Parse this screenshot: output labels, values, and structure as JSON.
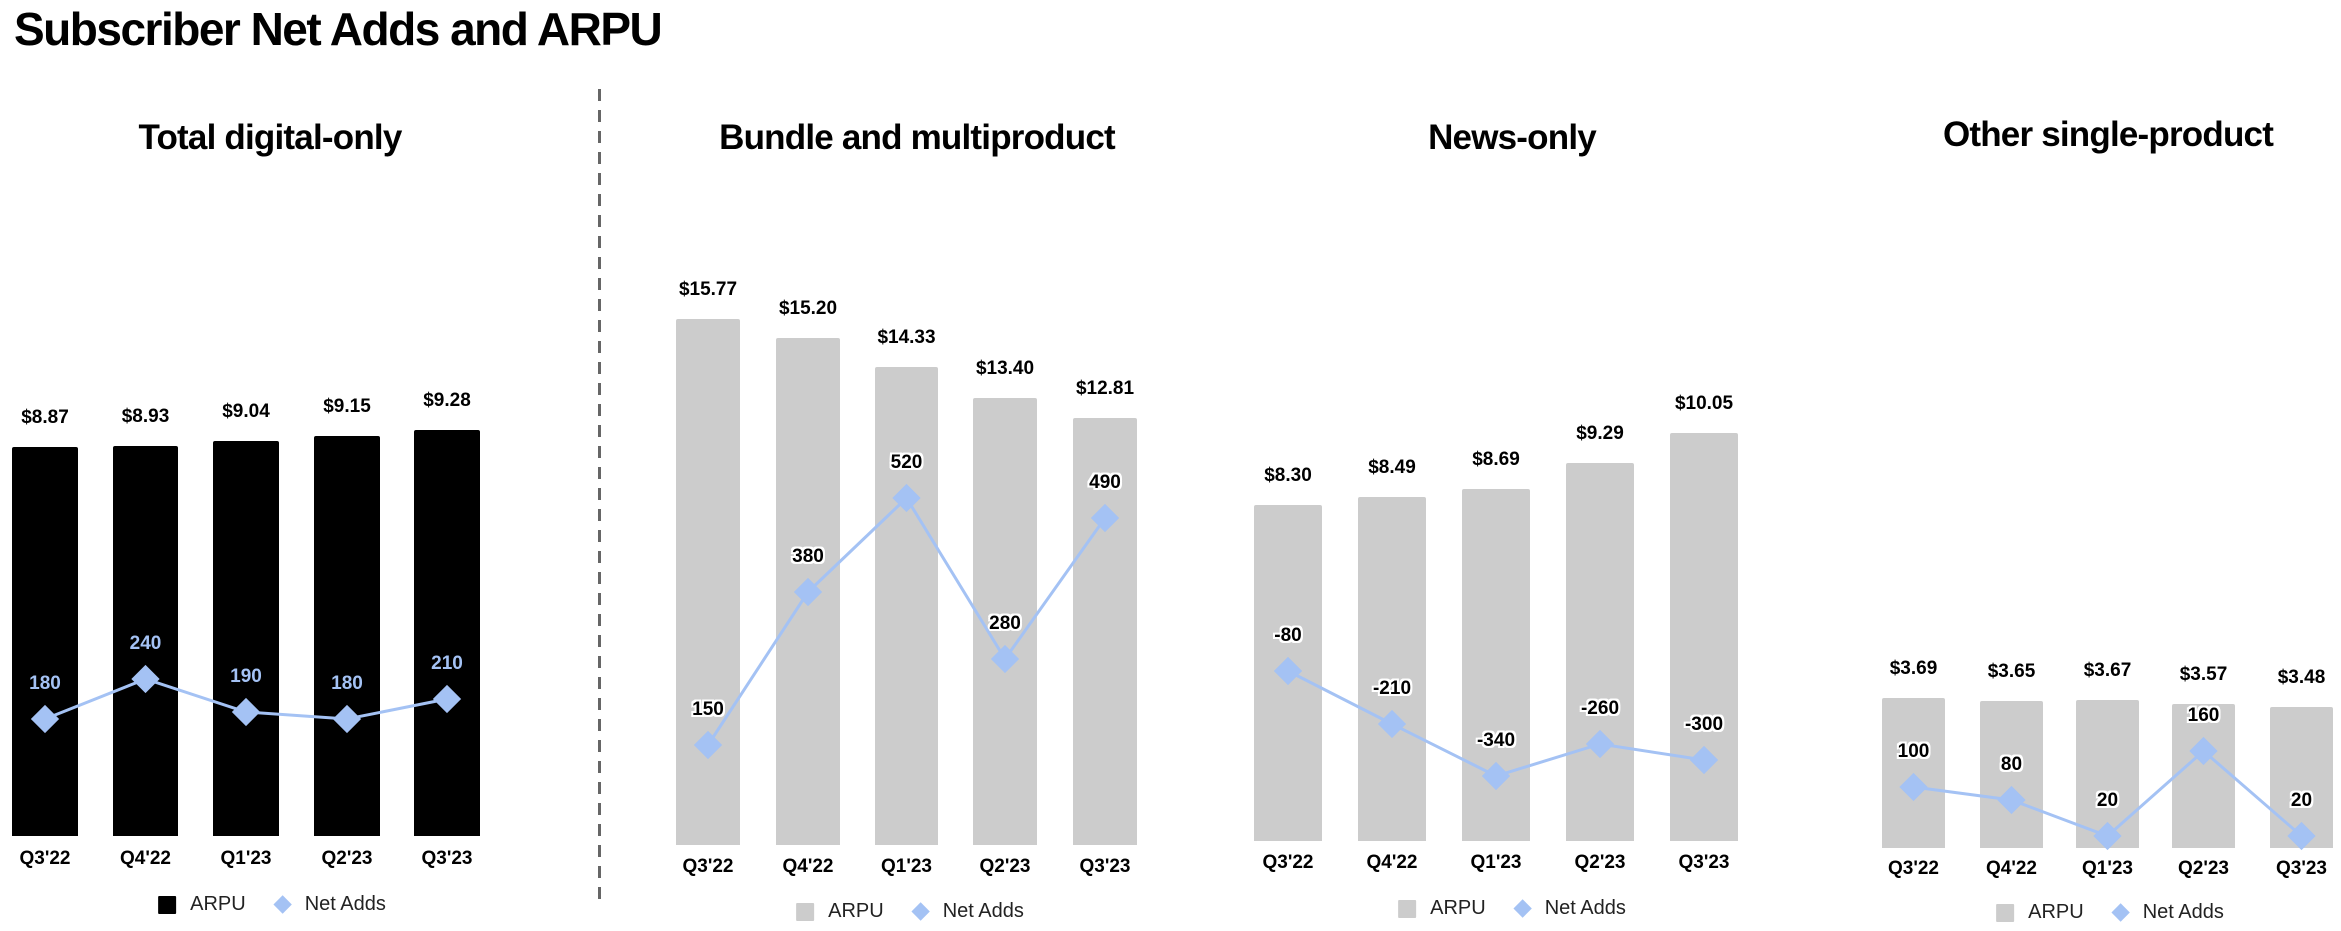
{
  "page": {
    "title": "Subscriber Net Adds and ARPU"
  },
  "colors": {
    "line": "#a4c2f4",
    "bar_dark": "#000000",
    "bar_gray": "#cccccc",
    "divider": "#666666"
  },
  "legend": {
    "arpu": "ARPU",
    "net_adds": "Net Adds"
  },
  "chart_data": [
    {
      "type": "bar+line",
      "title": "Total digital-only",
      "categories": [
        "Q3'22",
        "Q4'22",
        "Q1'23",
        "Q2'23",
        "Q3'23"
      ],
      "series": [
        {
          "name": "ARPU",
          "type": "bar",
          "values": [
            8.87,
            8.93,
            9.04,
            9.15,
            9.28
          ],
          "labels": [
            "$8.87",
            "$8.93",
            "$9.04",
            "$9.15",
            "$9.28"
          ],
          "color": "#000000"
        },
        {
          "name": "Net Adds",
          "type": "line",
          "values": [
            180,
            240,
            190,
            180,
            210
          ],
          "labels": [
            "180",
            "240",
            "190",
            "180",
            "210"
          ],
          "color": "#a4c2f4"
        }
      ],
      "legend_position": "bottom",
      "grid": false
    },
    {
      "type": "bar+line",
      "title": "Bundle and multiproduct",
      "categories": [
        "Q3'22",
        "Q4'22",
        "Q1'23",
        "Q2'23",
        "Q3'23"
      ],
      "series": [
        {
          "name": "ARPU",
          "type": "bar",
          "values": [
            15.77,
            15.2,
            14.33,
            13.4,
            12.81
          ],
          "labels": [
            "$15.77",
            "$15.20",
            "$14.33",
            "$13.40",
            "$12.81"
          ],
          "color": "#cccccc"
        },
        {
          "name": "Net Adds",
          "type": "line",
          "values": [
            150,
            380,
            520,
            280,
            490
          ],
          "labels": [
            "150",
            "380",
            "520",
            "280",
            "490"
          ],
          "color": "#a4c2f4"
        }
      ],
      "legend_position": "bottom",
      "grid": false
    },
    {
      "type": "bar+line",
      "title": "News-only",
      "categories": [
        "Q3'22",
        "Q4'22",
        "Q1'23",
        "Q2'23",
        "Q3'23"
      ],
      "series": [
        {
          "name": "ARPU",
          "type": "bar",
          "values": [
            8.3,
            8.49,
            8.69,
            9.29,
            10.05
          ],
          "labels": [
            "$8.30",
            "$8.49",
            "$8.69",
            "$9.29",
            "$10.05"
          ],
          "color": "#cccccc"
        },
        {
          "name": "Net Adds",
          "type": "line",
          "values": [
            -80,
            -210,
            -340,
            -260,
            -300
          ],
          "labels": [
            "-80",
            "-210",
            "-340",
            "-260",
            "-300"
          ],
          "color": "#a4c2f4"
        }
      ],
      "legend_position": "bottom",
      "grid": false
    },
    {
      "type": "bar+line",
      "title": "Other single-product",
      "categories": [
        "Q3'22",
        "Q4'22",
        "Q1'23",
        "Q2'23",
        "Q3'23"
      ],
      "series": [
        {
          "name": "ARPU",
          "type": "bar",
          "values": [
            3.69,
            3.65,
            3.67,
            3.57,
            3.48
          ],
          "labels": [
            "$3.69",
            "$3.65",
            "$3.67",
            "$3.57",
            "$3.48"
          ],
          "color": "#cccccc"
        },
        {
          "name": "Net Adds",
          "type": "line",
          "values": [
            100,
            80,
            20,
            160,
            20
          ],
          "labels": [
            "100",
            "80",
            "20",
            "160",
            "20"
          ],
          "color": "#a4c2f4"
        }
      ],
      "legend_position": "bottom",
      "grid": false
    }
  ]
}
